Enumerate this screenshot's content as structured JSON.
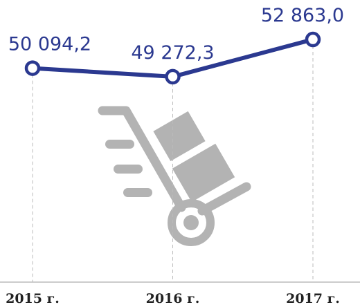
{
  "chart_data": {
    "type": "line",
    "categories": [
      "2015 г.",
      "2016 г.",
      "2017 г."
    ],
    "values": [
      50094.2,
      49272.3,
      52863.0
    ],
    "value_labels": [
      "50 094,2",
      "49 272,3",
      "52 863,0"
    ],
    "color": "#2b3990",
    "ylim": [
      46000,
      54000
    ]
  }
}
